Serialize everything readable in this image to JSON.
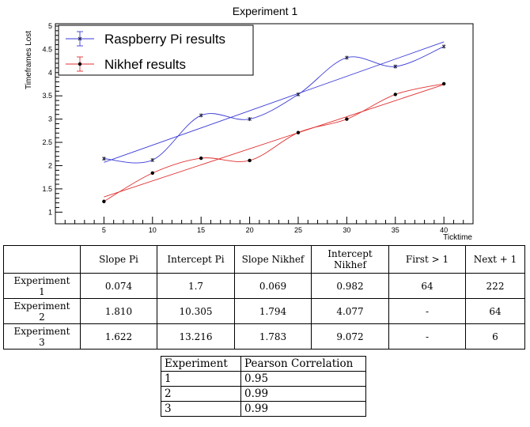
{
  "chart_data": {
    "type": "scatter",
    "title": "Experiment 1",
    "xlabel": "Ticktime",
    "ylabel": "Timeframes Lost",
    "xlim": [
      0,
      43
    ],
    "ylim": [
      0.75,
      5.05
    ],
    "x_ticks": [
      5,
      10,
      15,
      20,
      25,
      30,
      35,
      40
    ],
    "y_ticks": [
      1,
      1.5,
      2,
      2.5,
      3,
      3.5,
      4,
      4.5,
      5
    ],
    "legend_position": "top-left",
    "series": [
      {
        "name": "Raspberry Pi results",
        "color": "#3a3ad8",
        "marker": "star",
        "x": [
          5,
          10,
          15,
          20,
          25,
          30,
          35,
          40
        ],
        "y": [
          2.15,
          2.12,
          3.08,
          3.0,
          3.53,
          4.32,
          4.13,
          4.56
        ],
        "fit": {
          "slope": 0.074,
          "intercept": 1.7
        }
      },
      {
        "name": "Nikhef results",
        "color": "#e03030",
        "marker": "dot",
        "x": [
          5,
          10,
          15,
          20,
          25,
          30,
          35,
          40
        ],
        "y": [
          1.23,
          1.84,
          2.16,
          2.11,
          2.71,
          3.0,
          3.53,
          3.76
        ],
        "fit": {
          "slope": 0.069,
          "intercept": 0.982
        }
      }
    ]
  },
  "results_table": {
    "headers": [
      [
        "",
        ""
      ],
      [
        "Slope Pi",
        ""
      ],
      [
        "Intercept Pi",
        ""
      ],
      [
        "Slope Nikhef",
        ""
      ],
      [
        "Intercept",
        "Nikhef"
      ],
      [
        "First > 1",
        ""
      ],
      [
        "Next + 1",
        ""
      ]
    ],
    "rows": [
      {
        "label": [
          "Experiment",
          "1"
        ],
        "cells": [
          "0.074",
          "1.7",
          "0.069",
          "0.982",
          "64",
          "222"
        ]
      },
      {
        "label": [
          "Experiment",
          "2"
        ],
        "cells": [
          "1.810",
          "10.305",
          "1.794",
          "4.077",
          "-",
          "64"
        ]
      },
      {
        "label": [
          "Experiment",
          "3"
        ],
        "cells": [
          "1.622",
          "13.216",
          "1.783",
          "9.072",
          "-",
          "6"
        ]
      }
    ]
  },
  "pearson_table": {
    "headers": [
      "Experiment",
      "Pearson Correlation"
    ],
    "rows": [
      [
        "1",
        "0.95"
      ],
      [
        "2",
        "0.99"
      ],
      [
        "3",
        "0.99"
      ]
    ]
  }
}
